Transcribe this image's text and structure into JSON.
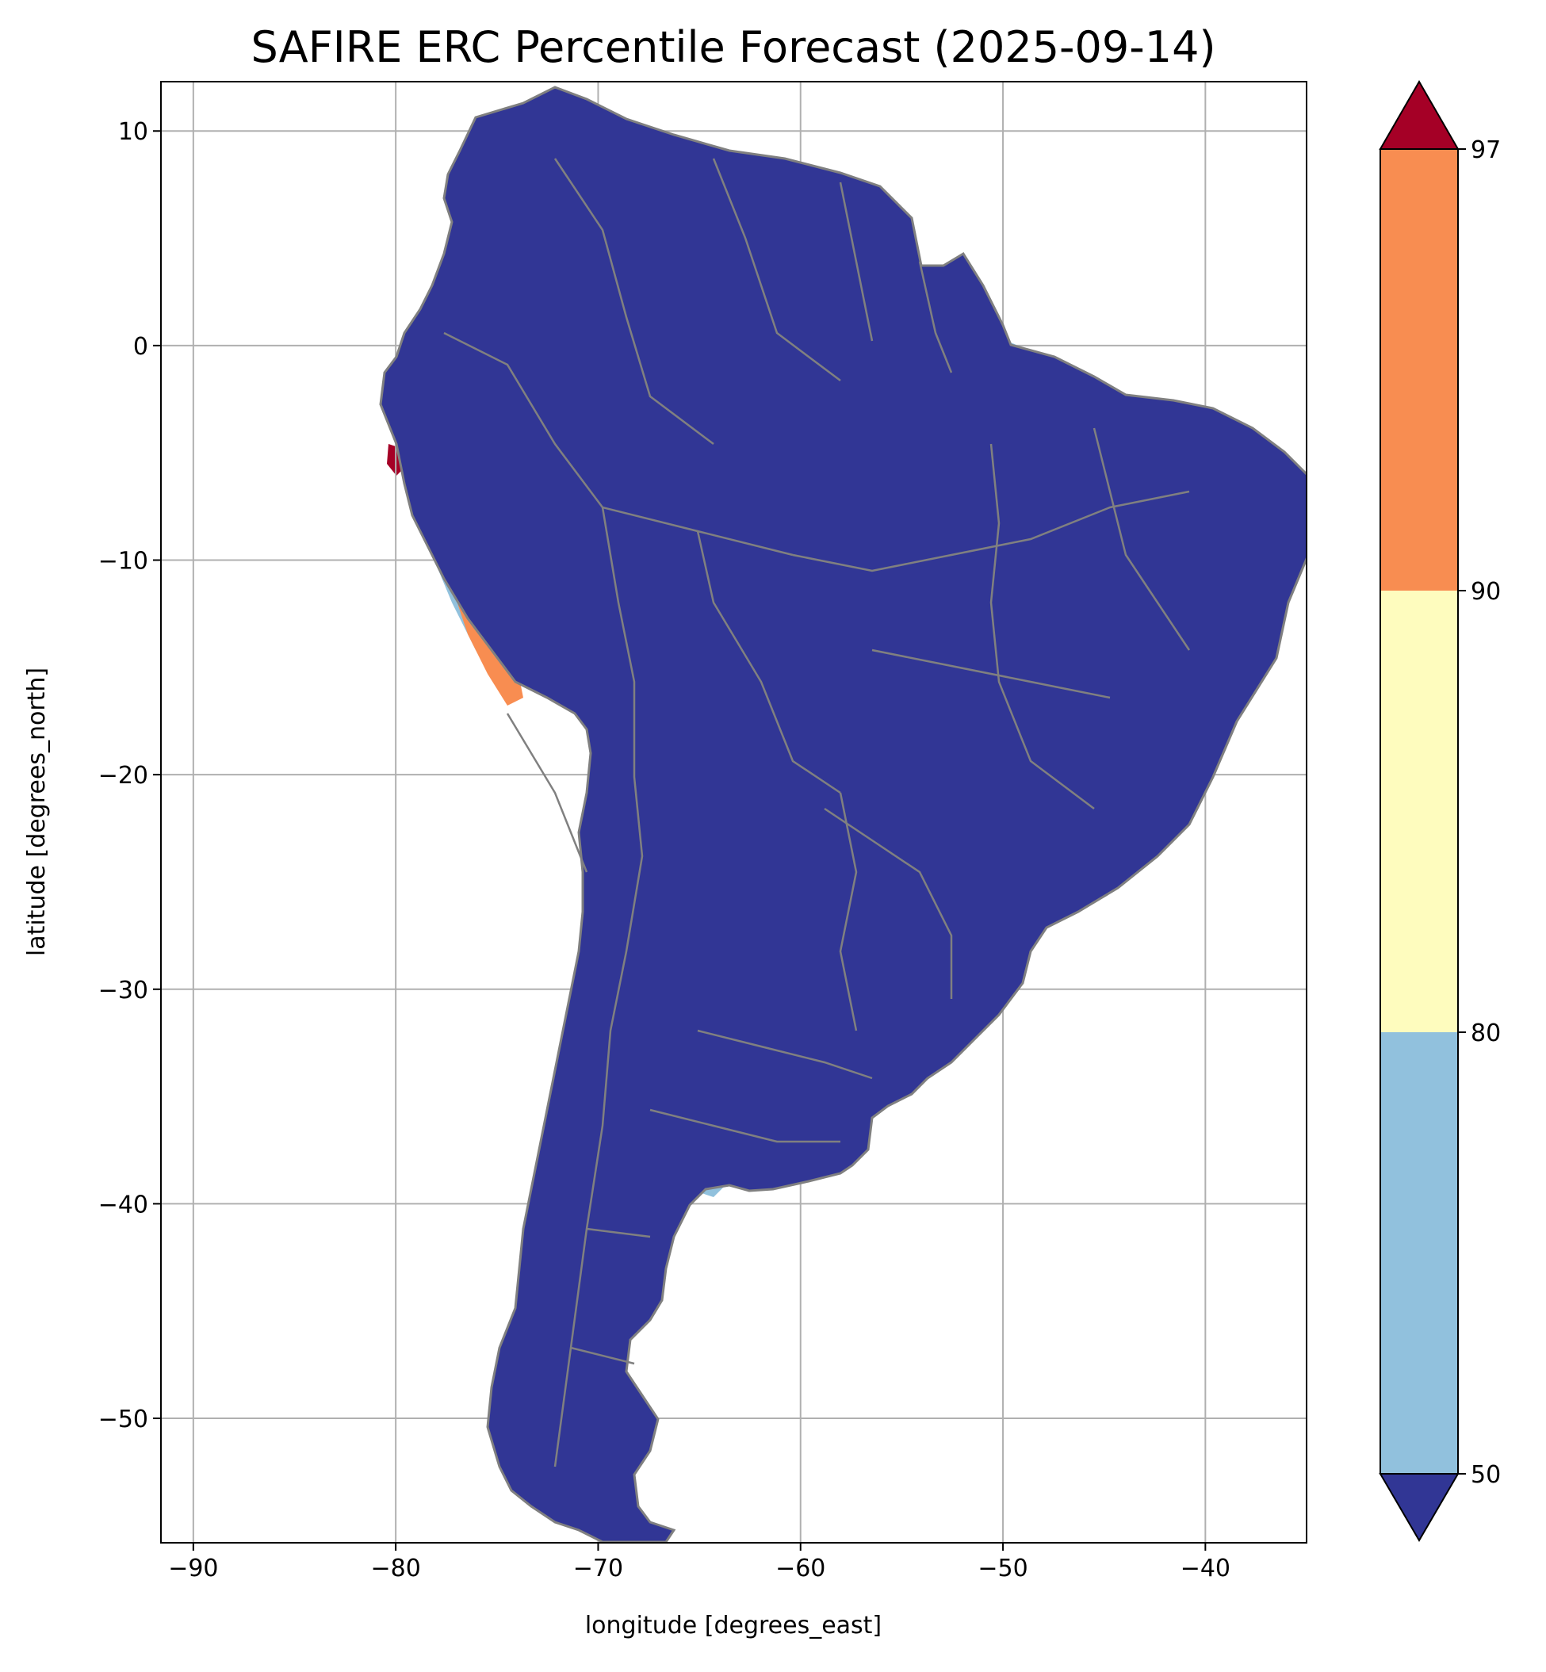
{
  "map": {
    "title": "SAFIRE ERC Percentile Forecast (2025-09-14)",
    "xlabel": "longitude [degrees_east]",
    "ylabel": "latitude [degrees_north]",
    "lon_range": [
      -91.6,
      -35
    ],
    "lat_range": [
      -55.8,
      12.3
    ],
    "x_ticks": [
      {
        "value": -90,
        "label": "−90"
      },
      {
        "value": -80,
        "label": "−80"
      },
      {
        "value": -70,
        "label": "−70"
      },
      {
        "value": -60,
        "label": "−60"
      },
      {
        "value": -50,
        "label": "−50"
      },
      {
        "value": -40,
        "label": "−40"
      }
    ],
    "y_ticks": [
      {
        "value": 10,
        "label": "10"
      },
      {
        "value": 0,
        "label": "0"
      },
      {
        "value": -10,
        "label": "−10"
      },
      {
        "value": -20,
        "label": "−20"
      },
      {
        "value": -30,
        "label": "−30"
      },
      {
        "value": -40,
        "label": "−40"
      },
      {
        "value": -50,
        "label": "−50"
      }
    ],
    "grid": true,
    "colors": {
      "below_50": "#313695",
      "p50_80": "#91c1dd",
      "p80_90": "#fefcbe",
      "p90_97": "#f88d51",
      "above_97": "#a50026",
      "border": "#808080",
      "grid": "#b0b0b0"
    }
  },
  "colorbar": {
    "ticks": [
      {
        "value": 50,
        "label": "50"
      },
      {
        "value": 80,
        "label": "80"
      },
      {
        "value": 90,
        "label": "90"
      },
      {
        "value": 97,
        "label": "97"
      }
    ]
  }
}
